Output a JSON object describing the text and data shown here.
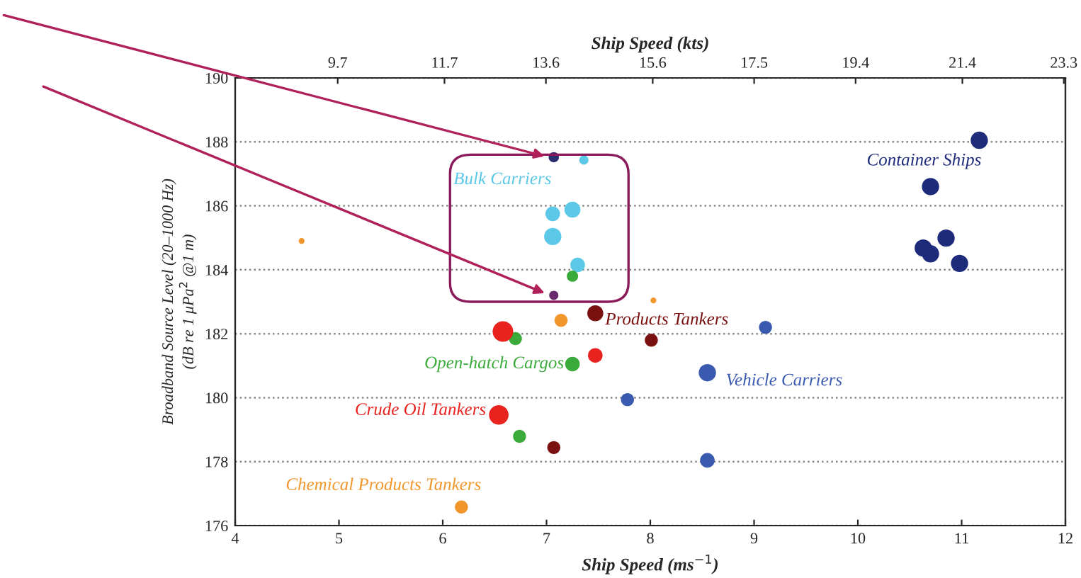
{
  "chart_data": {
    "type": "bubble",
    "xlabel": "Ship Speed (ms$^{−1}$)",
    "x2label": "Ship Speed (kts)",
    "ylabel": "Broadband Source Level (20–1000 Hz)\n(dB re 1 μPa$^{2}$ @1 m)",
    "xlim": [
      4,
      12
    ],
    "xticks": [
      4,
      5,
      6,
      7,
      8,
      9,
      10,
      11,
      12
    ],
    "x2lim": [
      7.78,
      23.33
    ],
    "x2ticks": [
      9.7,
      11.7,
      13.6,
      15.6,
      17.5,
      19.4,
      21.4,
      23.3
    ],
    "ylim": [
      176,
      190
    ],
    "yticks": [
      176,
      178,
      180,
      182,
      184,
      186,
      188,
      190
    ],
    "grid": "y",
    "marker": "circle",
    "series": [
      {
        "name": "Bulk Carriers",
        "color": "#5bc8e8",
        "x": [
          7.36,
          7.06,
          7.25,
          7.06,
          7.3
        ],
        "values": [
          187.43,
          185.75,
          185.88,
          185.04,
          184.15
        ],
        "sizes": [
          0.2,
          0.5,
          0.6,
          0.7,
          0.5
        ]
      },
      {
        "name": "Container Ships",
        "color": "#1e2a7a",
        "x": [
          11.17,
          10.7,
          10.85,
          10.63,
          10.7,
          10.98
        ],
        "values": [
          188.05,
          186.6,
          184.99,
          184.68,
          184.5,
          184.2
        ],
        "sizes": [
          0.7,
          0.7,
          0.7,
          0.7,
          0.7,
          0.7
        ]
      },
      {
        "name": "Products Tankers",
        "color": "#7a1010",
        "x": [
          7.47,
          8.01,
          7.07
        ],
        "values": [
          182.64,
          181.8,
          178.44
        ],
        "sizes": [
          0.6,
          0.4,
          0.4
        ]
      },
      {
        "name": "Open-hatch Cargos",
        "color": "#3aaa3a",
        "x": [
          7.25,
          6.7,
          7.25,
          6.74
        ],
        "values": [
          183.8,
          181.85,
          181.05,
          178.79
        ],
        "sizes": [
          0.3,
          0.4,
          0.5,
          0.4
        ]
      },
      {
        "name": "Vehicle Carriers",
        "color": "#3a5ab0",
        "x": [
          9.11,
          8.55,
          7.78,
          8.55
        ],
        "values": [
          182.2,
          180.78,
          179.94,
          178.04
        ],
        "sizes": [
          0.4,
          0.7,
          0.4,
          0.5
        ]
      },
      {
        "name": "Crude Oil Tankers",
        "color": "#e8221e",
        "x": [
          6.58,
          7.47,
          6.54
        ],
        "values": [
          182.07,
          181.32,
          179.46
        ],
        "sizes": [
          1.0,
          0.5,
          0.9
        ]
      },
      {
        "name": "Chemical Products Tankers",
        "color": "#f0962a",
        "x": [
          4.64,
          7.14,
          8.03,
          6.18
        ],
        "values": [
          184.9,
          182.42,
          183.04,
          176.58
        ],
        "sizes": [
          0.08,
          0.4,
          0.08,
          0.4
        ]
      },
      {
        "colors": [
          "#2a2f6e",
          "#6a2a6e"
        ],
        "x": [
          7.07,
          7.07
        ],
        "values": [
          187.52,
          183.2
        ],
        "sizes": [
          0.25,
          0.2
        ]
      }
    ]
  }
}
